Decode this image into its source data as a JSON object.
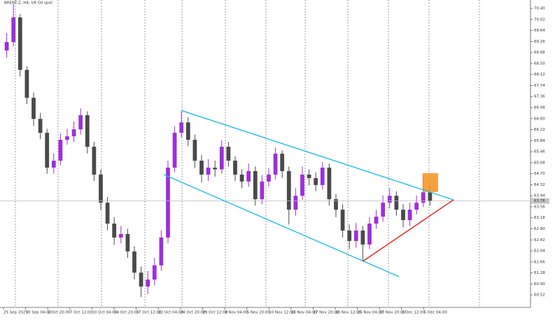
{
  "chart_data": {
    "type": "candlestick",
    "title": "BRENT-Z, H4: UK Oil spot",
    "up_color": "#9b30d9",
    "down_color": "#4a4a4a",
    "open": [
      68.95,
      69.24,
      70.09,
      68.28,
      67.32,
      66.59,
      66.11,
      64.91,
      65.15,
      65.87,
      65.99,
      66.23,
      66.72,
      65.63,
      64.67,
      63.7,
      62.98,
      62.5,
      62.62,
      62.02,
      61.29,
      60.81,
      61.05,
      61.54,
      62.5,
      64.91,
      66.11,
      66.47,
      65.87,
      65.15,
      64.67,
      64.91,
      64.85,
      65.63,
      65.15,
      64.67,
      64.43,
      64.79,
      63.82,
      64.43,
      64.67,
      65.39,
      64.79,
      63.46,
      63.94,
      64.67,
      64.55,
      64.31,
      64.91,
      63.82,
      63.46,
      62.74,
      62.38,
      62.74,
      62.26,
      62.98,
      63.22,
      63.7,
      63.94,
      63.46,
      63.1,
      63.46,
      63.7,
      64.06
    ],
    "high": [
      69.55,
      70.55,
      70.2,
      68.4,
      67.5,
      66.8,
      66.25,
      65.4,
      66.1,
      66.25,
      66.5,
      66.95,
      66.85,
      65.8,
      64.85,
      63.9,
      63.2,
      62.9,
      62.8,
      62.2,
      61.5,
      61.35,
      61.8,
      62.75,
      65.15,
      66.35,
      66.85,
      66.65,
      66.05,
      65.35,
      65.2,
      65.15,
      65.85,
      65.8,
      65.3,
      64.85,
      65.05,
      64.95,
      64.65,
      64.9,
      65.6,
      65.5,
      64.95,
      64.2,
      64.95,
      64.85,
      64.75,
      65.1,
      65.05,
      64.0,
      63.65,
      62.95,
      63.0,
      62.9,
      63.2,
      63.45,
      63.95,
      64.2,
      64.1,
      63.65,
      63.7,
      63.95,
      64.6,
      64.3
    ],
    "low": [
      68.7,
      69.1,
      68.05,
      67.1,
      66.35,
      65.9,
      64.7,
      64.7,
      65.0,
      65.7,
      65.8,
      66.05,
      65.4,
      64.45,
      63.45,
      62.75,
      62.25,
      62.3,
      61.8,
      61.05,
      60.45,
      60.55,
      60.85,
      61.35,
      62.3,
      64.75,
      65.95,
      65.65,
      64.9,
      64.4,
      64.45,
      64.6,
      64.7,
      64.95,
      64.45,
      64.2,
      64.25,
      63.6,
      63.65,
      64.25,
      64.5,
      64.55,
      62.95,
      63.25,
      63.8,
      64.3,
      64.1,
      64.15,
      63.6,
      63.2,
      62.5,
      62.1,
      62.15,
      61.7,
      62.1,
      62.8,
      63.05,
      63.5,
      63.25,
      62.85,
      62.9,
      63.3,
      63.55,
      63.6
    ],
    "close": [
      69.24,
      70.09,
      68.28,
      67.32,
      66.59,
      66.11,
      64.91,
      65.15,
      65.87,
      65.99,
      66.23,
      66.72,
      65.63,
      64.67,
      63.7,
      62.98,
      62.5,
      62.62,
      62.02,
      61.29,
      60.81,
      61.05,
      61.54,
      62.5,
      64.91,
      66.11,
      66.47,
      65.87,
      65.15,
      64.67,
      64.91,
      64.85,
      65.63,
      65.15,
      64.67,
      64.43,
      64.79,
      63.82,
      64.43,
      64.67,
      65.39,
      64.79,
      63.46,
      63.94,
      64.67,
      64.55,
      64.31,
      64.91,
      63.82,
      63.46,
      62.74,
      62.38,
      62.74,
      62.26,
      62.98,
      63.22,
      63.7,
      63.94,
      63.46,
      63.1,
      63.46,
      63.7,
      64.06,
      63.76
    ],
    "current_price": 63.76,
    "ylim": [
      60.09,
      70.69
    ],
    "yticks": [
      {
        "value": 70.4,
        "label": "70.40"
      },
      70.02,
      69.64,
      69.26,
      68.88,
      {
        "value": 68.5,
        "label": "68.50"
      },
      68.12,
      67.74,
      67.36,
      66.98,
      {
        "value": 66.6,
        "label": "66.60"
      },
      66.22,
      65.84,
      65.46,
      65.08,
      {
        "value": 64.7,
        "label": "64.70"
      },
      64.32,
      63.94,
      63.56,
      63.18,
      {
        "value": 62.8,
        "label": "62.80"
      },
      62.42,
      62.04,
      61.66,
      61.28,
      {
        "value": 60.9,
        "label": "60.90"
      },
      60.52
    ],
    "xlim": [
      -1,
      77.96
    ],
    "xticks": [
      {
        "value": -0.48,
        "label": "25 Sep 2025"
      },
      {
        "value": 2.81,
        "label": "30 Sep 04:00"
      },
      {
        "value": 6.1,
        "label": "2 Oct 20:00"
      },
      {
        "value": 9.4,
        "label": "7 Oct 12:00"
      },
      {
        "value": 12.69,
        "label": "10 Oct 04:00"
      },
      {
        "value": 15.98,
        "label": "14 Oct 20:00"
      },
      {
        "value": 19.27,
        "label": "17 Oct 12:00"
      },
      {
        "value": 22.56,
        "label": "22 Oct 04:00"
      },
      {
        "value": 25.85,
        "label": "24 Oct 20:00"
      },
      {
        "value": 29.15,
        "label": "29 Oct 12:00"
      },
      {
        "value": 32.44,
        "label": "3 Nov 04:00"
      },
      {
        "value": 35.73,
        "label": "5 Nov 20:00"
      },
      {
        "value": 39.02,
        "label": "10 Nov 12:00"
      },
      {
        "value": 42.31,
        "label": "13 Nov 04:00"
      },
      {
        "value": 45.6,
        "label": "17 Nov 20:00"
      },
      {
        "value": 48.9,
        "label": "20 Nov 12:00"
      },
      {
        "value": 52.19,
        "label": "25 Nov 04:00"
      },
      {
        "value": 55.48,
        "label": "27 Nov 20:00"
      },
      {
        "value": 58.77,
        "label": "2 Dec 12:00"
      },
      {
        "value": 62.06,
        "label": "5 Dec 04:00"
      }
    ],
    "trendlines": [
      {
        "color": "#22bde6",
        "x": [
          26.0,
          66.5
        ],
        "y": [
          66.88,
          63.8
        ]
      },
      {
        "color": "#22bde6",
        "x": [
          23.4,
          58.4
        ],
        "y": [
          64.67,
          61.15
        ]
      },
      {
        "color": "#e3261f",
        "x": [
          53.0,
          66.5
        ],
        "y": [
          61.68,
          63.8
        ]
      }
    ],
    "rectangles": [
      {
        "color": "#f5901e",
        "x": [
          61.9,
          64.2
        ],
        "y": [
          64.72,
          64.07
        ]
      }
    ]
  }
}
